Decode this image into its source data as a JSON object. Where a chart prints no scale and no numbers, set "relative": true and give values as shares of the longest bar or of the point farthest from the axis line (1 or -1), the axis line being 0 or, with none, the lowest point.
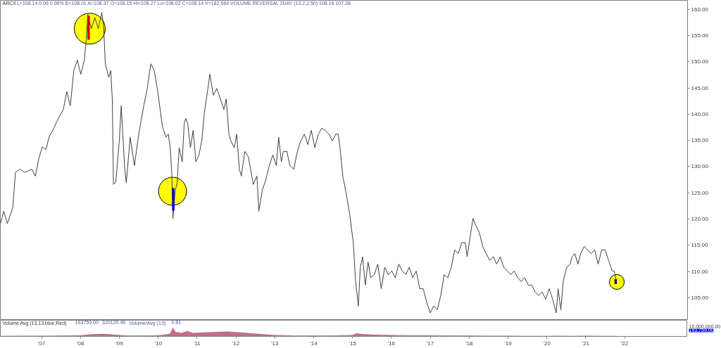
{
  "chart_data": [
    {
      "type": "line",
      "title": "ARCX",
      "subtitle": "L=108.14 0.06 0.06% B=108.01 A=108.37 O=108.15 Hi=108.27 Lo=108.02 C=108.14 V=182,564 VOLUME REVERSAL 2DAY (13,2,2,50) 108.16 107.38",
      "xlim": [
        2005.94,
        2023.62
      ],
      "ylim": [
        100.7,
        161.7
      ],
      "yticks": [
        {
          "value": 105,
          "label": "105.00"
        },
        {
          "value": 110,
          "label": "110.00"
        },
        {
          "value": 115,
          "label": "115.00"
        },
        {
          "value": 120,
          "label": "120.00"
        },
        {
          "value": 125,
          "label": "125.00"
        },
        {
          "value": 130,
          "label": "130.00"
        },
        {
          "value": 135,
          "label": "135.00"
        },
        {
          "value": 140,
          "label": "140.00"
        },
        {
          "value": 145,
          "label": "145.00"
        },
        {
          "value": 150,
          "label": "150.00"
        },
        {
          "value": 155,
          "label": "155.00"
        },
        {
          "value": 160,
          "label": "160.00"
        }
      ],
      "tick_labels": "y",
      "grid": false,
      "series": [
        {
          "type": "bubble",
          "color": "#ffff00",
          "x": [
            2008.24,
            2010.37,
            2021.8
          ],
          "values": [
            156.3,
            125.3,
            108.0
          ],
          "sizes": [
            1,
            0.82,
            0.23
          ]
        },
        {
          "color": "#404040",
          "x": [
            2005.94,
            2006.03,
            2006.12,
            2006.26,
            2006.33,
            2006.44,
            2006.57,
            2006.75,
            2006.84,
            2006.93,
            2007.02,
            2007.11,
            2007.2,
            2007.29,
            2007.41,
            2007.56,
            2007.65,
            2007.74,
            2007.83,
            2007.92,
            2008.01,
            2008.1,
            2008.15,
            2008.19,
            2008.28,
            2008.37,
            2008.46,
            2008.55,
            2008.6,
            2008.64,
            2008.73,
            2008.78,
            2008.82,
            2008.85,
            2008.91,
            2009.0,
            2009.05,
            2009.14,
            2009.18,
            2009.28,
            2009.39,
            2009.5,
            2009.63,
            2009.72,
            2009.81,
            2009.9,
            2009.99,
            2010.11,
            2010.2,
            2010.26,
            2010.31,
            2010.35,
            2010.38,
            2010.44,
            2010.49,
            2010.54,
            2010.62,
            2010.67,
            2010.71,
            2010.76,
            2010.83,
            2010.9,
            2010.97,
            2011.05,
            2011.12,
            2011.19,
            2011.28,
            2011.33,
            2011.42,
            2011.51,
            2011.6,
            2011.69,
            2011.75,
            2011.82,
            2011.87,
            2011.96,
            2012.02,
            2012.09,
            2012.14,
            2012.23,
            2012.32,
            2012.41,
            2012.45,
            2012.54,
            2012.59,
            2012.68,
            2012.77,
            2012.86,
            2012.95,
            2013.04,
            2013.1,
            2013.17,
            2013.22,
            2013.31,
            2013.39,
            2013.49,
            2013.58,
            2013.67,
            2013.76,
            2013.85,
            2013.94,
            2014.03,
            2014.12,
            2014.21,
            2014.3,
            2014.39,
            2014.48,
            2014.57,
            2014.63,
            2014.68,
            2014.75,
            2014.84,
            2014.93,
            2015.02,
            2015.08,
            2015.15,
            2015.2,
            2015.26,
            2015.33,
            2015.4,
            2015.47,
            2015.56,
            2015.65,
            2015.74,
            2015.83,
            2015.92,
            2016.01,
            2016.1,
            2016.19,
            2016.28,
            2016.37,
            2016.46,
            2016.55,
            2016.64,
            2016.73,
            2016.82,
            2016.91,
            2017.0,
            2017.09,
            2017.18,
            2017.27,
            2017.36,
            2017.45,
            2017.54,
            2017.63,
            2017.72,
            2017.81,
            2017.9,
            2017.95,
            2018.03,
            2018.1,
            2018.17,
            2018.26,
            2018.35,
            2018.44,
            2018.53,
            2018.62,
            2018.71,
            2018.8,
            2018.89,
            2018.98,
            2019.07,
            2019.16,
            2019.25,
            2019.34,
            2019.43,
            2019.52,
            2019.61,
            2019.7,
            2019.79,
            2019.88,
            2019.97,
            2020.06,
            2020.15,
            2020.24,
            2020.29,
            2020.36,
            2020.42,
            2020.51,
            2020.6,
            2020.65,
            2020.72,
            2020.8,
            2020.87,
            2020.96,
            2021.05,
            2021.14,
            2021.23,
            2021.32,
            2021.41,
            2021.5,
            2021.59,
            2021.68,
            2021.73,
            2021.77,
            2021.8
          ],
          "values": [
            119.1,
            121.5,
            119.1,
            122.2,
            128.9,
            129.5,
            128.9,
            129.5,
            128.2,
            131.5,
            133.8,
            133.2,
            135.8,
            136.9,
            138.9,
            140.9,
            144.3,
            141.6,
            148.3,
            150.3,
            147.6,
            150.3,
            154.3,
            159.0,
            156.3,
            158.4,
            156.3,
            159.4,
            156.3,
            149.6,
            147.0,
            148.3,
            142.9,
            126.6,
            127.1,
            134.9,
            141.6,
            129.5,
            126.9,
            135.6,
            130.2,
            136.2,
            141.6,
            144.9,
            149.6,
            148.3,
            144.3,
            137.6,
            135.6,
            136.2,
            133.6,
            128.9,
            120.1,
            125.5,
            126.9,
            133.6,
            130.9,
            138.2,
            139.2,
            138.2,
            133.6,
            136.9,
            130.9,
            132.2,
            134.9,
            140.3,
            144.9,
            147.6,
            143.6,
            144.9,
            142.9,
            140.9,
            142.9,
            136.2,
            134.9,
            133.6,
            136.2,
            129.5,
            128.2,
            132.9,
            131.9,
            128.2,
            126.6,
            128.2,
            121.5,
            125.5,
            127.5,
            130.2,
            132.2,
            130.2,
            135.6,
            130.9,
            132.9,
            132.9,
            130.2,
            129.5,
            132.9,
            134.9,
            136.2,
            134.2,
            136.9,
            133.6,
            136.2,
            137.3,
            136.9,
            136.2,
            134.9,
            136.2,
            136.2,
            133.6,
            128.2,
            124.8,
            120.8,
            115.5,
            108.1,
            103.4,
            110.8,
            112.8,
            107.4,
            111.8,
            108.8,
            109.4,
            111.4,
            106.7,
            110.8,
            109.4,
            110.1,
            108.8,
            111.4,
            110.1,
            109.4,
            110.8,
            108.8,
            110.1,
            106.7,
            106.7,
            104.1,
            102.1,
            103.4,
            102.7,
            105.4,
            109.4,
            108.8,
            110.8,
            114.1,
            113.4,
            115.5,
            115.5,
            112.8,
            116.8,
            120.1,
            118.8,
            117.5,
            114.8,
            113.4,
            112.1,
            112.8,
            111.4,
            112.8,
            110.8,
            110.1,
            109.4,
            110.1,
            108.8,
            108.1,
            108.8,
            107.4,
            107.4,
            106.1,
            105.4,
            106.1,
            104.7,
            106.7,
            104.7,
            102.1,
            106.7,
            102.7,
            108.1,
            110.8,
            111.4,
            112.8,
            113.4,
            111.4,
            113.4,
            114.8,
            114.1,
            113.4,
            114.1,
            111.4,
            114.1,
            114.1,
            112.1,
            110.1,
            110.1,
            108.8,
            108.1
          ]
        },
        {
          "type": "bar",
          "colors": [
            "#cc0000",
            "#0000cc",
            "#000080"
          ],
          "x": [
            2008.21,
            2010.39,
            2021.77
          ],
          "base": [
            154.2,
            121.6,
            107.6
          ],
          "values": [
            4.6,
            4.3,
            0.9
          ]
        }
      ]
    },
    {
      "type": "area",
      "title": "Volume Avg (13,13,blue,Red)",
      "annotations": [
        "193759.00",
        "320120.46",
        "Volume/Avg (13)",
        "0.81",
        "10,000,000.00",
        "193,759.00"
      ],
      "relative": true,
      "xlim": [
        2005.94,
        2023.62
      ],
      "xticks": [
        {
          "value": 2007,
          "label": "'07"
        },
        {
          "value": 2008,
          "label": "'08"
        },
        {
          "value": 2009,
          "label": "'09"
        },
        {
          "value": 2010,
          "label": "'10"
        },
        {
          "value": 2011,
          "label": "'11"
        },
        {
          "value": 2012,
          "label": "'12"
        },
        {
          "value": 2013,
          "label": "'13"
        },
        {
          "value": 2014,
          "label": "'14"
        },
        {
          "value": 2015,
          "label": "'15"
        },
        {
          "value": 2016,
          "label": "'16"
        },
        {
          "value": 2017,
          "label": "'17"
        },
        {
          "value": 2018,
          "label": "'18"
        },
        {
          "value": 2019,
          "label": "'19"
        },
        {
          "value": 2020,
          "label": "'20"
        },
        {
          "value": 2021,
          "label": "'21"
        },
        {
          "value": 2022,
          "label": "'22"
        }
      ],
      "tick_labels": "x",
      "series": [
        {
          "color": "#c07088",
          "x": [
            2005.94,
            2006.5,
            2007.0,
            2007.5,
            2008.0,
            2008.3,
            2008.6,
            2008.9,
            2009.2,
            2009.6,
            2010.0,
            2010.3,
            2010.38,
            2010.45,
            2010.6,
            2010.75,
            2010.9,
            2011.2,
            2011.5,
            2011.8,
            2012.1,
            2012.4,
            2012.7,
            2013.0,
            2013.5,
            2014.0,
            2014.5,
            2015.0,
            2015.1,
            2015.3,
            2015.6,
            2016.0,
            2016.5,
            2017.0,
            2017.5,
            2018.0,
            2018.5,
            2019.0,
            2019.5,
            2020.0,
            2020.3,
            2020.6,
            2021.0,
            2021.5,
            2021.8
          ],
          "values": [
            0.06,
            0.07,
            0.08,
            0.1,
            0.12,
            0.25,
            0.3,
            0.2,
            0.1,
            0.1,
            0.12,
            0.3,
            1.0,
            0.5,
            0.4,
            0.6,
            0.4,
            0.45,
            0.5,
            0.55,
            0.45,
            0.35,
            0.25,
            0.15,
            0.1,
            0.1,
            0.1,
            0.15,
            0.35,
            0.25,
            0.2,
            0.15,
            0.12,
            0.12,
            0.1,
            0.1,
            0.07,
            0.07,
            0.06,
            0.06,
            0.08,
            0.06,
            0.07,
            0.06,
            0.05
          ]
        }
      ]
    }
  ]
}
